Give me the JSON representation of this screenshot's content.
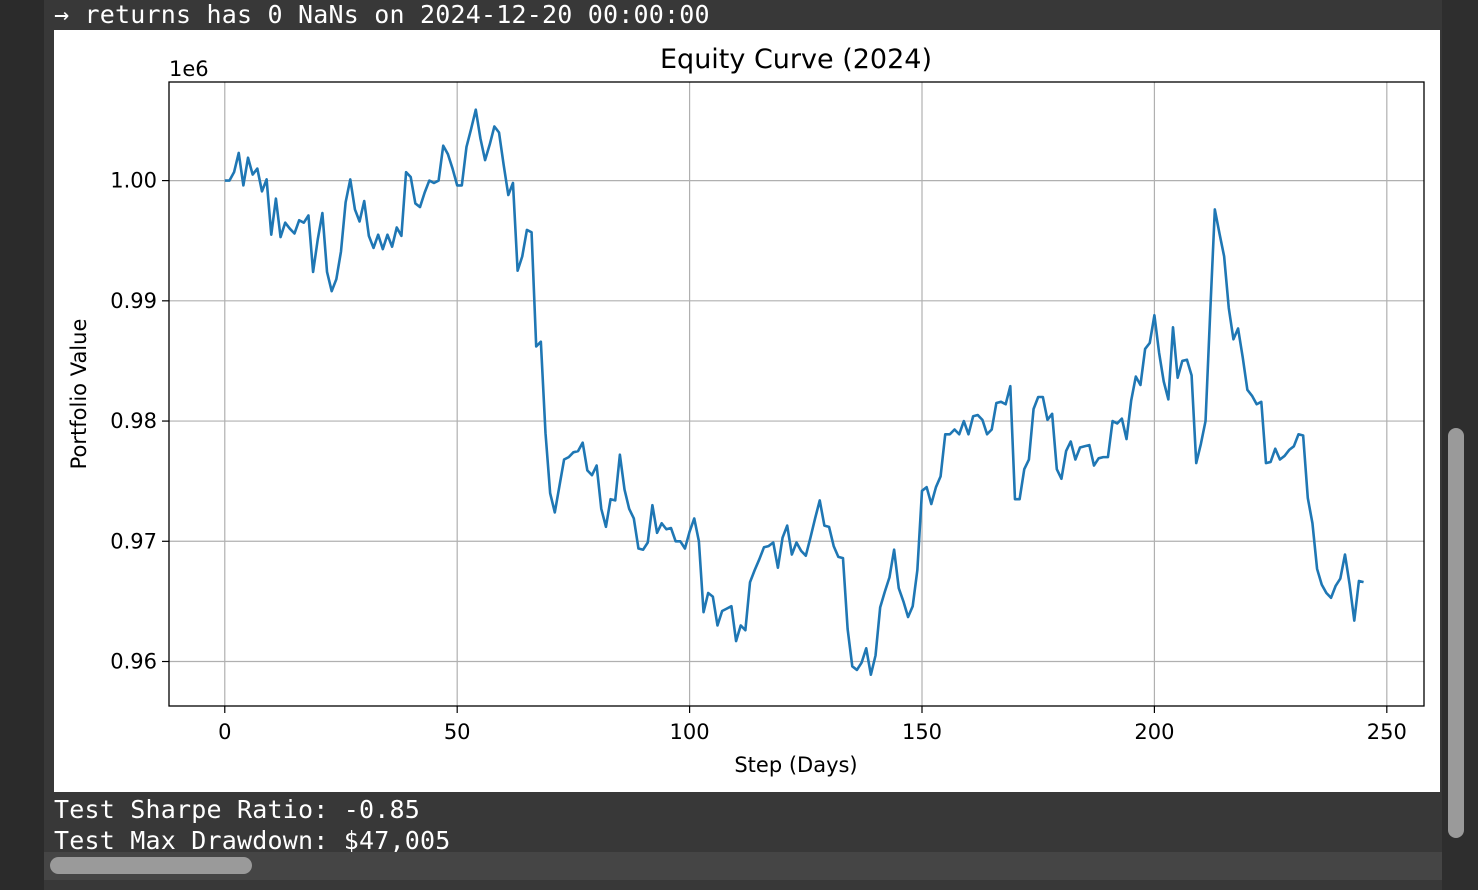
{
  "output": {
    "top_line": "→ returns has 0 NaNs on 2024-12-20 00:00:00",
    "sharpe_line": "Test Sharpe Ratio: -0.85",
    "drawdown_line": "Test Max Drawdown: $47,005"
  },
  "chart_data": {
    "type": "line",
    "title": "Equity Curve (2024)",
    "xlabel": "Step (Days)",
    "ylabel": "Portfolio Value",
    "y_offset_label": "1e6",
    "xlim": [
      -12,
      258
    ],
    "ylim": [
      0.9563,
      1.0082
    ],
    "x_ticks": [
      0,
      50,
      100,
      150,
      200,
      250
    ],
    "y_ticks": [
      0.96,
      0.97,
      0.98,
      0.99,
      1.0
    ],
    "x_tick_labels": [
      "0",
      "50",
      "100",
      "150",
      "200",
      "250"
    ],
    "y_tick_labels": [
      "0.96",
      "0.97",
      "0.98",
      "0.99",
      "1.00"
    ],
    "grid": true,
    "line_color": "#1f77b4",
    "series": [
      {
        "x_start": 0,
        "values": [
          1.0,
          1.0,
          1.0007,
          1.0023,
          0.9996,
          1.0019,
          1.0005,
          1.001,
          0.9991,
          1.0001,
          0.9955,
          0.9985,
          0.9953,
          0.9965,
          0.996,
          0.9956,
          0.9967,
          0.9965,
          0.9971,
          0.9924,
          0.9951,
          0.9973,
          0.9924,
          0.9908,
          0.9918,
          0.9941,
          0.9982,
          1.0001,
          0.9976,
          0.9966,
          0.9983,
          0.9954,
          0.9944,
          0.9955,
          0.9943,
          0.9955,
          0.9945,
          0.9961,
          0.9954,
          1.0007,
          1.0003,
          0.9981,
          0.9978,
          0.999,
          1.0,
          0.9998,
          1.0,
          1.0029,
          1.0022,
          1.001,
          0.9996,
          0.9996,
          1.0028,
          1.0043,
          1.0059,
          1.0035,
          1.0017,
          1.003,
          1.0045,
          1.004,
          1.0013,
          0.9988,
          0.9998,
          0.9925,
          0.9937,
          0.9959,
          0.9957,
          0.9862,
          0.9866,
          0.979,
          0.974,
          0.9724,
          0.9746,
          0.9768,
          0.977,
          0.9774,
          0.9775,
          0.9782,
          0.9759,
          0.9755,
          0.9763,
          0.9727,
          0.9712,
          0.9735,
          0.9734,
          0.9772,
          0.9743,
          0.9727,
          0.9719,
          0.9694,
          0.9693,
          0.9699,
          0.973,
          0.9707,
          0.9715,
          0.971,
          0.9711,
          0.97,
          0.97,
          0.9694,
          0.9708,
          0.9719,
          0.97,
          0.9641,
          0.9657,
          0.9654,
          0.963,
          0.9642,
          0.9644,
          0.9646,
          0.9617,
          0.963,
          0.9626,
          0.9666,
          0.9676,
          0.9685,
          0.9695,
          0.9696,
          0.9699,
          0.9678,
          0.9703,
          0.9713,
          0.9689,
          0.9699,
          0.9692,
          0.9688,
          0.9703,
          0.9719,
          0.9734,
          0.9713,
          0.9712,
          0.9696,
          0.9687,
          0.9686,
          0.9627,
          0.9596,
          0.9593,
          0.9599,
          0.9611,
          0.9589,
          0.9605,
          0.9645,
          0.9658,
          0.967,
          0.9693,
          0.9661,
          0.965,
          0.9637,
          0.9646,
          0.9676,
          0.9742,
          0.9745,
          0.9731,
          0.9745,
          0.9754,
          0.9789,
          0.9789,
          0.9793,
          0.9789,
          0.98,
          0.9789,
          0.9804,
          0.9805,
          0.9801,
          0.9789,
          0.9793,
          0.9815,
          0.9816,
          0.9814,
          0.9829,
          0.9735,
          0.9735,
          0.976,
          0.9768,
          0.981,
          0.982,
          0.982,
          0.9801,
          0.9806,
          0.976,
          0.9752,
          0.9775,
          0.9783,
          0.9768,
          0.9778,
          0.9779,
          0.978,
          0.9763,
          0.9769,
          0.977,
          0.977,
          0.98,
          0.9798,
          0.9802,
          0.9785,
          0.9817,
          0.9837,
          0.983,
          0.986,
          0.9865,
          0.9888,
          0.9857,
          0.9833,
          0.9818,
          0.9878,
          0.9836,
          0.985,
          0.9851,
          0.9838,
          0.9765,
          0.9781,
          0.98,
          0.989,
          0.9976,
          0.9956,
          0.9937,
          0.9894,
          0.9868,
          0.9877,
          0.9853,
          0.9826,
          0.9821,
          0.9814,
          0.9816,
          0.9765,
          0.9766,
          0.9777,
          0.9768,
          0.9771,
          0.9776,
          0.9779,
          0.9789,
          0.9788,
          0.9736,
          0.9715,
          0.9677,
          0.9664,
          0.9657,
          0.9653,
          0.9663,
          0.9669,
          0.9689,
          0.9664,
          0.9634,
          0.9667,
          0.9666
        ]
      }
    ]
  }
}
